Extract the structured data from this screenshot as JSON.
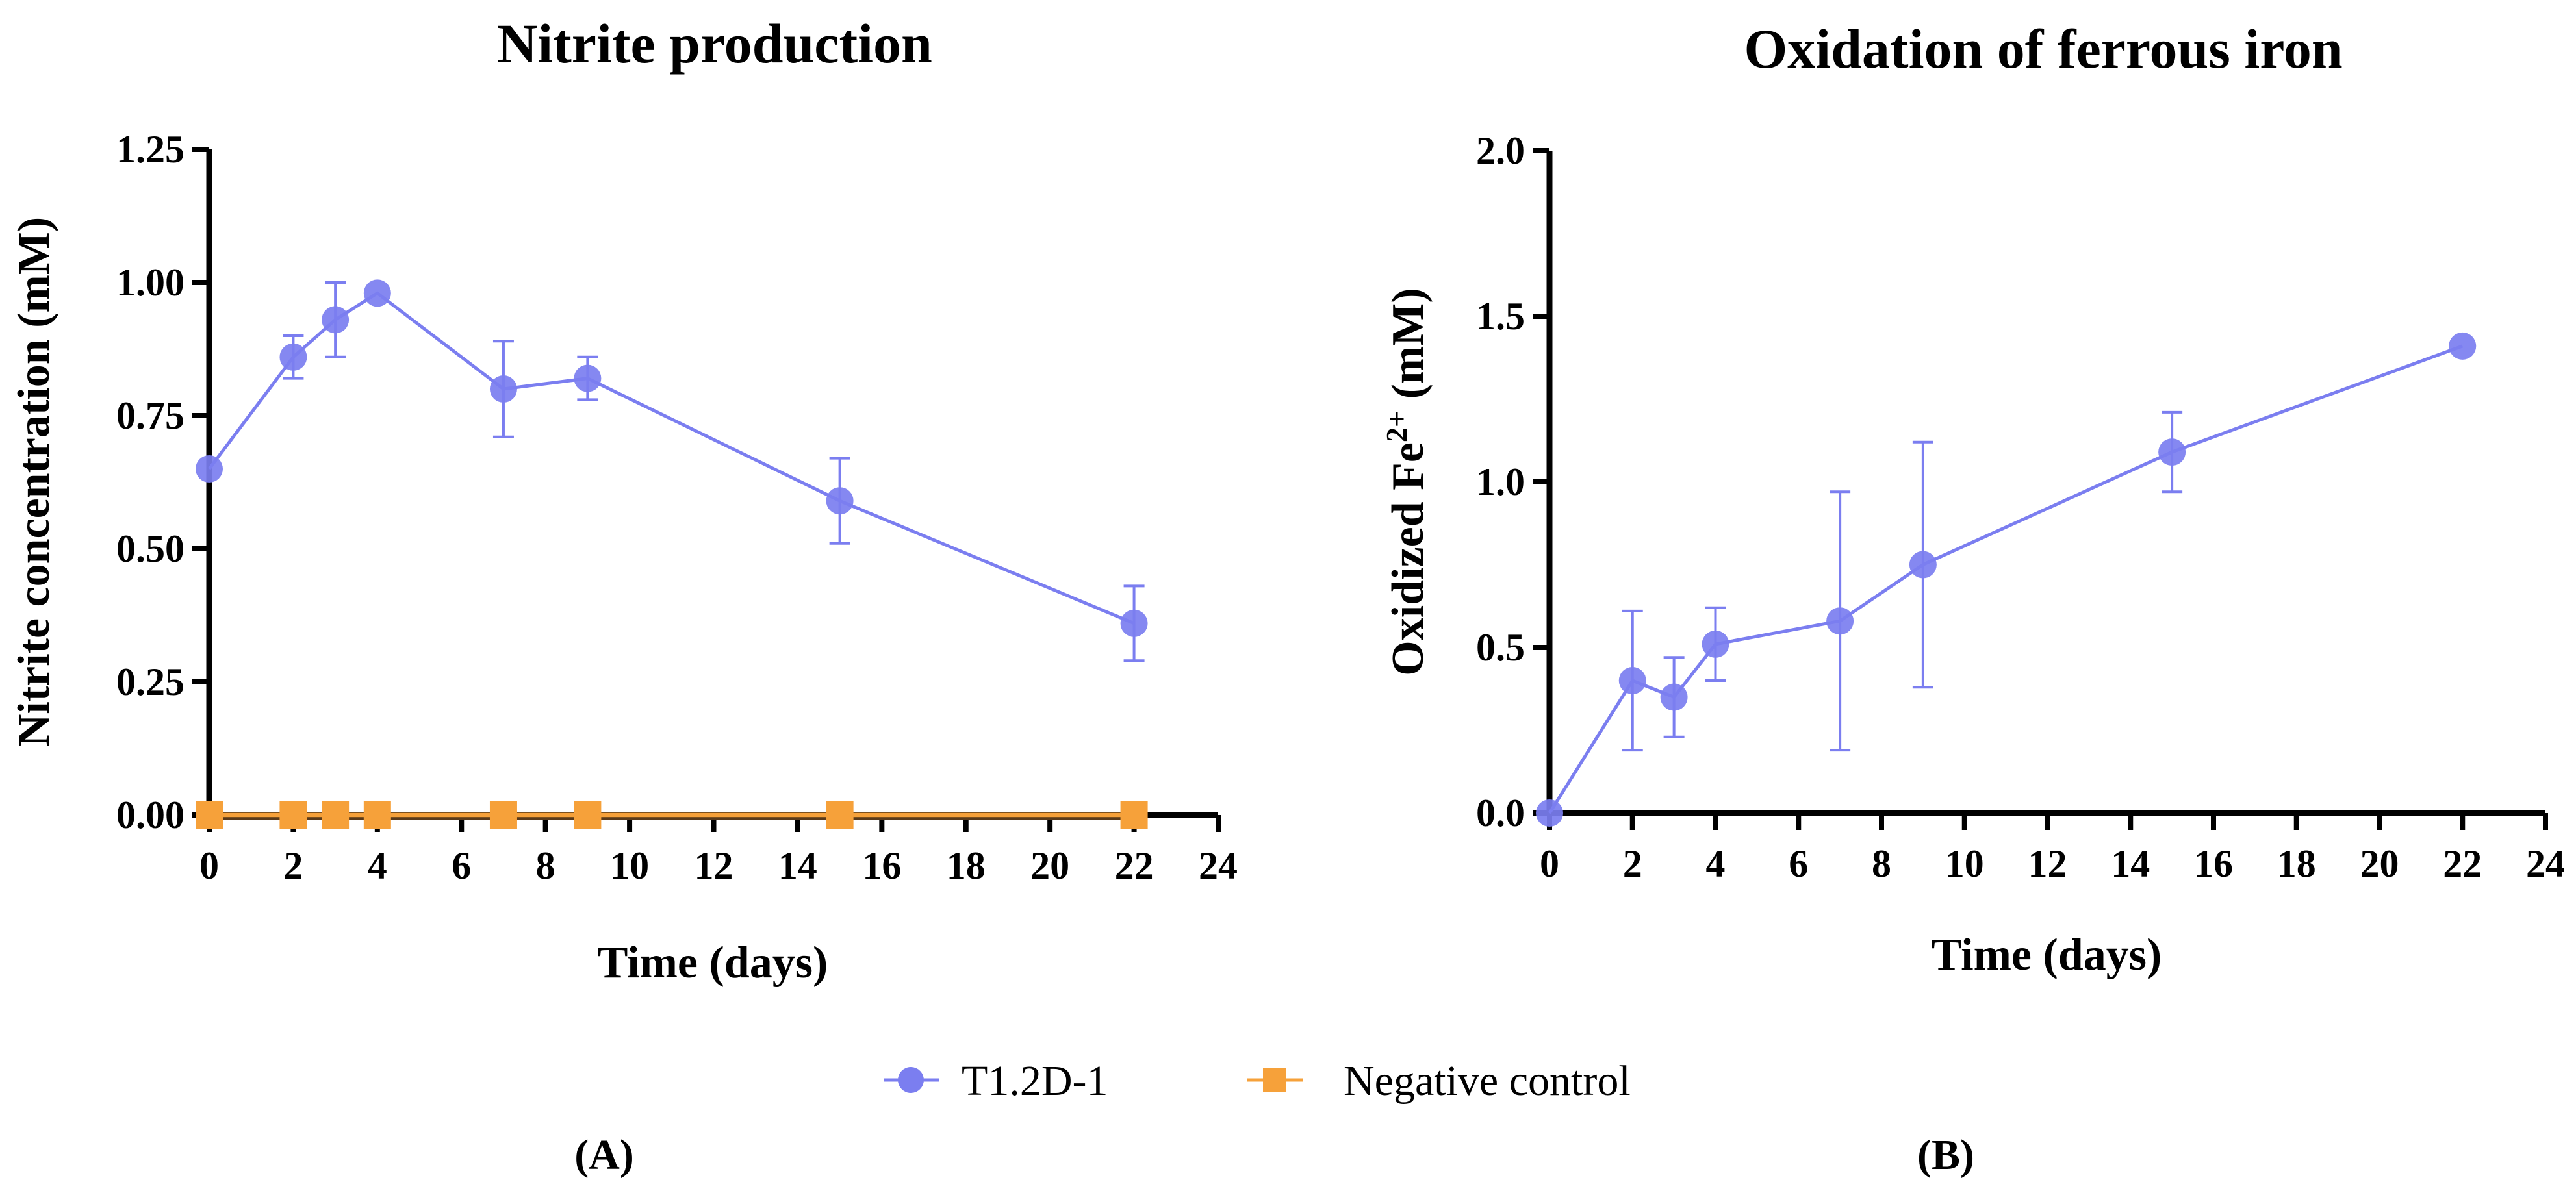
{
  "colors": {
    "series_t12d1": "#7b7ef0",
    "series_negative": "#f6a13a",
    "axis": "#000000"
  },
  "legend": {
    "items": [
      {
        "label": "T1.2D-1",
        "color": "#7b7ef0",
        "marker": "circle"
      },
      {
        "label": "Negative control",
        "color": "#f6a13a",
        "marker": "square"
      }
    ]
  },
  "chart_data": [
    {
      "id": "A",
      "panel_label": "(A)",
      "type": "line",
      "title": "Nitrite production",
      "xlabel": "Time (days)",
      "ylabel": "Nitrite concentration (mM)",
      "xlim": [
        0,
        24
      ],
      "ylim": [
        0,
        1.25
      ],
      "xticks": [
        0,
        2,
        4,
        6,
        8,
        10,
        12,
        14,
        16,
        18,
        20,
        22,
        24
      ],
      "yticks": [
        0,
        0.25,
        0.5,
        0.75,
        1.0,
        1.25
      ],
      "ytick_labels": [
        "0.00",
        "0.25",
        "0.50",
        "0.75",
        "1.00",
        "1.25"
      ],
      "series": [
        {
          "name": "T1.2D-1",
          "marker": "circle",
          "color": "#7b7ef0",
          "x": [
            0,
            2,
            3,
            4,
            7,
            9,
            15,
            22
          ],
          "y": [
            0.65,
            0.86,
            0.93,
            0.98,
            0.8,
            0.82,
            0.59,
            0.36
          ],
          "err": [
            0,
            0.04,
            0.07,
            0,
            0.09,
            0.04,
            0.08,
            0.07
          ]
        },
        {
          "name": "Negative control",
          "marker": "square",
          "color": "#f6a13a",
          "x": [
            0,
            2,
            3,
            4,
            7,
            9,
            15,
            22
          ],
          "y": [
            0,
            0,
            0,
            0,
            0,
            0,
            0,
            0
          ],
          "err": [
            0,
            0,
            0,
            0,
            0,
            0,
            0,
            0
          ]
        }
      ]
    },
    {
      "id": "B",
      "panel_label": "(B)",
      "type": "line",
      "title": "Oxidation of ferrous iron",
      "xlabel": "Time (days)",
      "ylabel": "Oxidized Fe",
      "ylabel_superscript": "2+",
      "ylabel_suffix": " (mM)",
      "xlim": [
        0,
        24
      ],
      "ylim": [
        0,
        2.0
      ],
      "xticks": [
        0,
        2,
        4,
        6,
        8,
        10,
        12,
        14,
        16,
        18,
        20,
        22,
        24
      ],
      "yticks": [
        0,
        0.5,
        1.0,
        1.5,
        2.0
      ],
      "ytick_labels": [
        "0.0",
        "0.5",
        "1.0",
        "1.5",
        "2.0"
      ],
      "series": [
        {
          "name": "T1.2D-1",
          "marker": "circle",
          "color": "#7b7ef0",
          "x": [
            0,
            2,
            3,
            4,
            7,
            9,
            15,
            22
          ],
          "y": [
            0,
            0.4,
            0.35,
            0.51,
            0.58,
            0.75,
            1.09,
            1.41
          ],
          "err": [
            0,
            0.21,
            0.12,
            0.11,
            0.39,
            0.37,
            0.12,
            0
          ]
        }
      ]
    }
  ]
}
